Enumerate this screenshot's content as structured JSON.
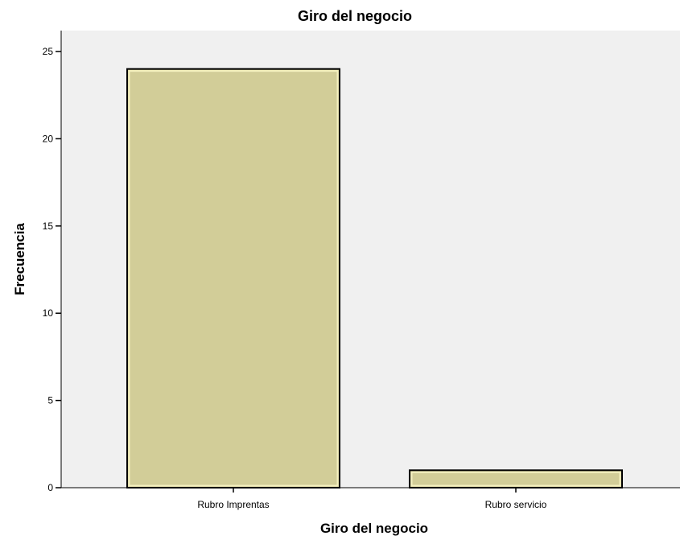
{
  "chart_data": {
    "type": "bar",
    "title": "Giro del negocio",
    "xlabel": "Giro del negocio",
    "ylabel": "Frecuencia",
    "categories": [
      "Rubro Imprentas",
      "Rubro servicio"
    ],
    "values": [
      24,
      1
    ],
    "ylim": [
      0,
      26.2
    ],
    "yticks": [
      0,
      5,
      10,
      15,
      20,
      25
    ],
    "grid": false,
    "legend": "none",
    "colors": {
      "bar": "#d2cd98",
      "bar_outline": "#000000",
      "bar_highlight": "#f4f0bf",
      "plot_background": "#f0f0f0"
    }
  }
}
